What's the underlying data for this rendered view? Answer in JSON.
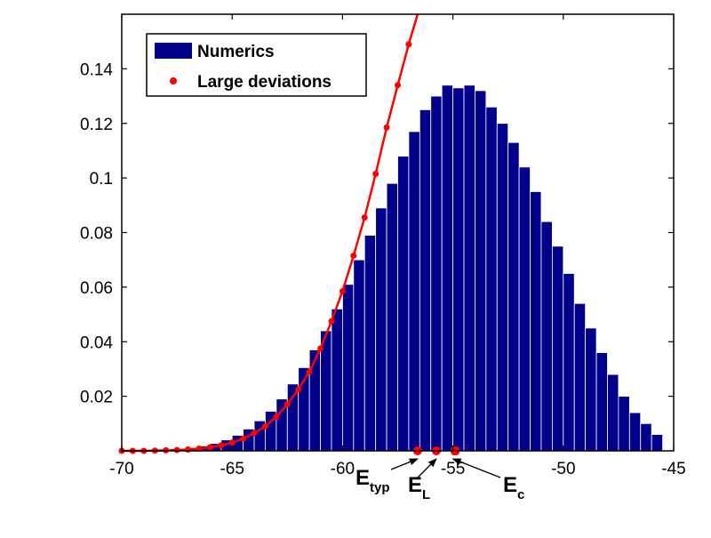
{
  "chart_data": {
    "type": "bar",
    "title": "",
    "xlabel": "",
    "ylabel": "",
    "xlim": [
      -70,
      -45
    ],
    "ylim": [
      0,
      0.16
    ],
    "grid": false,
    "legend_position": "top-left",
    "x_ticks": [
      -70,
      -65,
      -60,
      -55,
      -50,
      -45
    ],
    "x_tick_labels": [
      "-70",
      "-65",
      "-60",
      "-55",
      "-50",
      "-45"
    ],
    "y_ticks": [
      0.02,
      0.04,
      0.06,
      0.08,
      0.1,
      0.12,
      0.14
    ],
    "y_tick_labels": [
      "0.02",
      "0.04",
      "0.06",
      "0.08",
      "0.1",
      "0.12",
      "0.14"
    ],
    "series": [
      {
        "name": "Numerics",
        "kind": "histogram",
        "color": "#00008b",
        "bin_width": 0.5,
        "bin_centers": [
          -68.75,
          -68.25,
          -67.75,
          -67.25,
          -66.75,
          -66.25,
          -65.75,
          -65.25,
          -64.75,
          -64.25,
          -63.75,
          -63.25,
          -62.75,
          -62.25,
          -61.75,
          -61.25,
          -60.75,
          -60.25,
          -59.75,
          -59.25,
          -58.75,
          -58.25,
          -57.75,
          -57.25,
          -56.75,
          -56.25,
          -55.75,
          -55.25,
          -54.75,
          -54.25,
          -53.75,
          -53.25,
          -52.75,
          -52.25,
          -51.75,
          -51.25,
          -50.75,
          -50.25,
          -49.75,
          -49.25,
          -48.75,
          -48.25,
          -47.75,
          -47.25,
          -46.75,
          -46.25,
          -45.75
        ],
        "values": [
          0.0002,
          0.0003,
          0.0005,
          0.0008,
          0.0012,
          0.0018,
          0.0027,
          0.004,
          0.0057,
          0.008,
          0.011,
          0.0145,
          0.019,
          0.0245,
          0.0305,
          0.037,
          0.044,
          0.052,
          0.061,
          0.07,
          0.079,
          0.089,
          0.098,
          0.108,
          0.117,
          0.125,
          0.13,
          0.134,
          0.133,
          0.134,
          0.132,
          0.126,
          0.12,
          0.113,
          0.104,
          0.095,
          0.084,
          0.075,
          0.065,
          0.054,
          0.045,
          0.036,
          0.028,
          0.02,
          0.014,
          0.01,
          0.006
        ]
      },
      {
        "name": "Large deviations",
        "kind": "line-markers",
        "color": "#ff0000",
        "x": [
          -70,
          -69.5,
          -69,
          -68.5,
          -68,
          -67.5,
          -67,
          -66.5,
          -66,
          -65.5,
          -65,
          -64.5,
          -64,
          -63.5,
          -63,
          -62.5,
          -62,
          -61.5,
          -61,
          -60.5,
          -60,
          -59.5,
          -59,
          -58.5,
          -58,
          -57.5,
          -57
        ],
        "y": [
          0.0,
          0.0,
          0.0,
          0.0001,
          0.0002,
          0.0003,
          0.0005,
          0.0008,
          0.0013,
          0.002,
          0.003,
          0.0045,
          0.0065,
          0.009,
          0.0125,
          0.017,
          0.0225,
          0.029,
          0.0375,
          0.0475,
          0.0585,
          0.0715,
          0.0855,
          0.1015,
          0.1185,
          0.134,
          0.149
        ],
        "curve_extends_to": [
          -56.6,
          0.16
        ]
      }
    ],
    "annotations": [
      {
        "id": "etyp",
        "main": "E",
        "sub": "typ",
        "marker_x": -56.6,
        "arrow_target_x": -56.6
      },
      {
        "id": "el",
        "main": "E",
        "sub": "L",
        "marker_x": -55.75,
        "arrow_target_x": -55.75
      },
      {
        "id": "ec",
        "main": "E",
        "sub": "c",
        "marker_x": -55.1,
        "marker_x_end": -54.7,
        "arrow_target_x": -55.0
      }
    ]
  }
}
